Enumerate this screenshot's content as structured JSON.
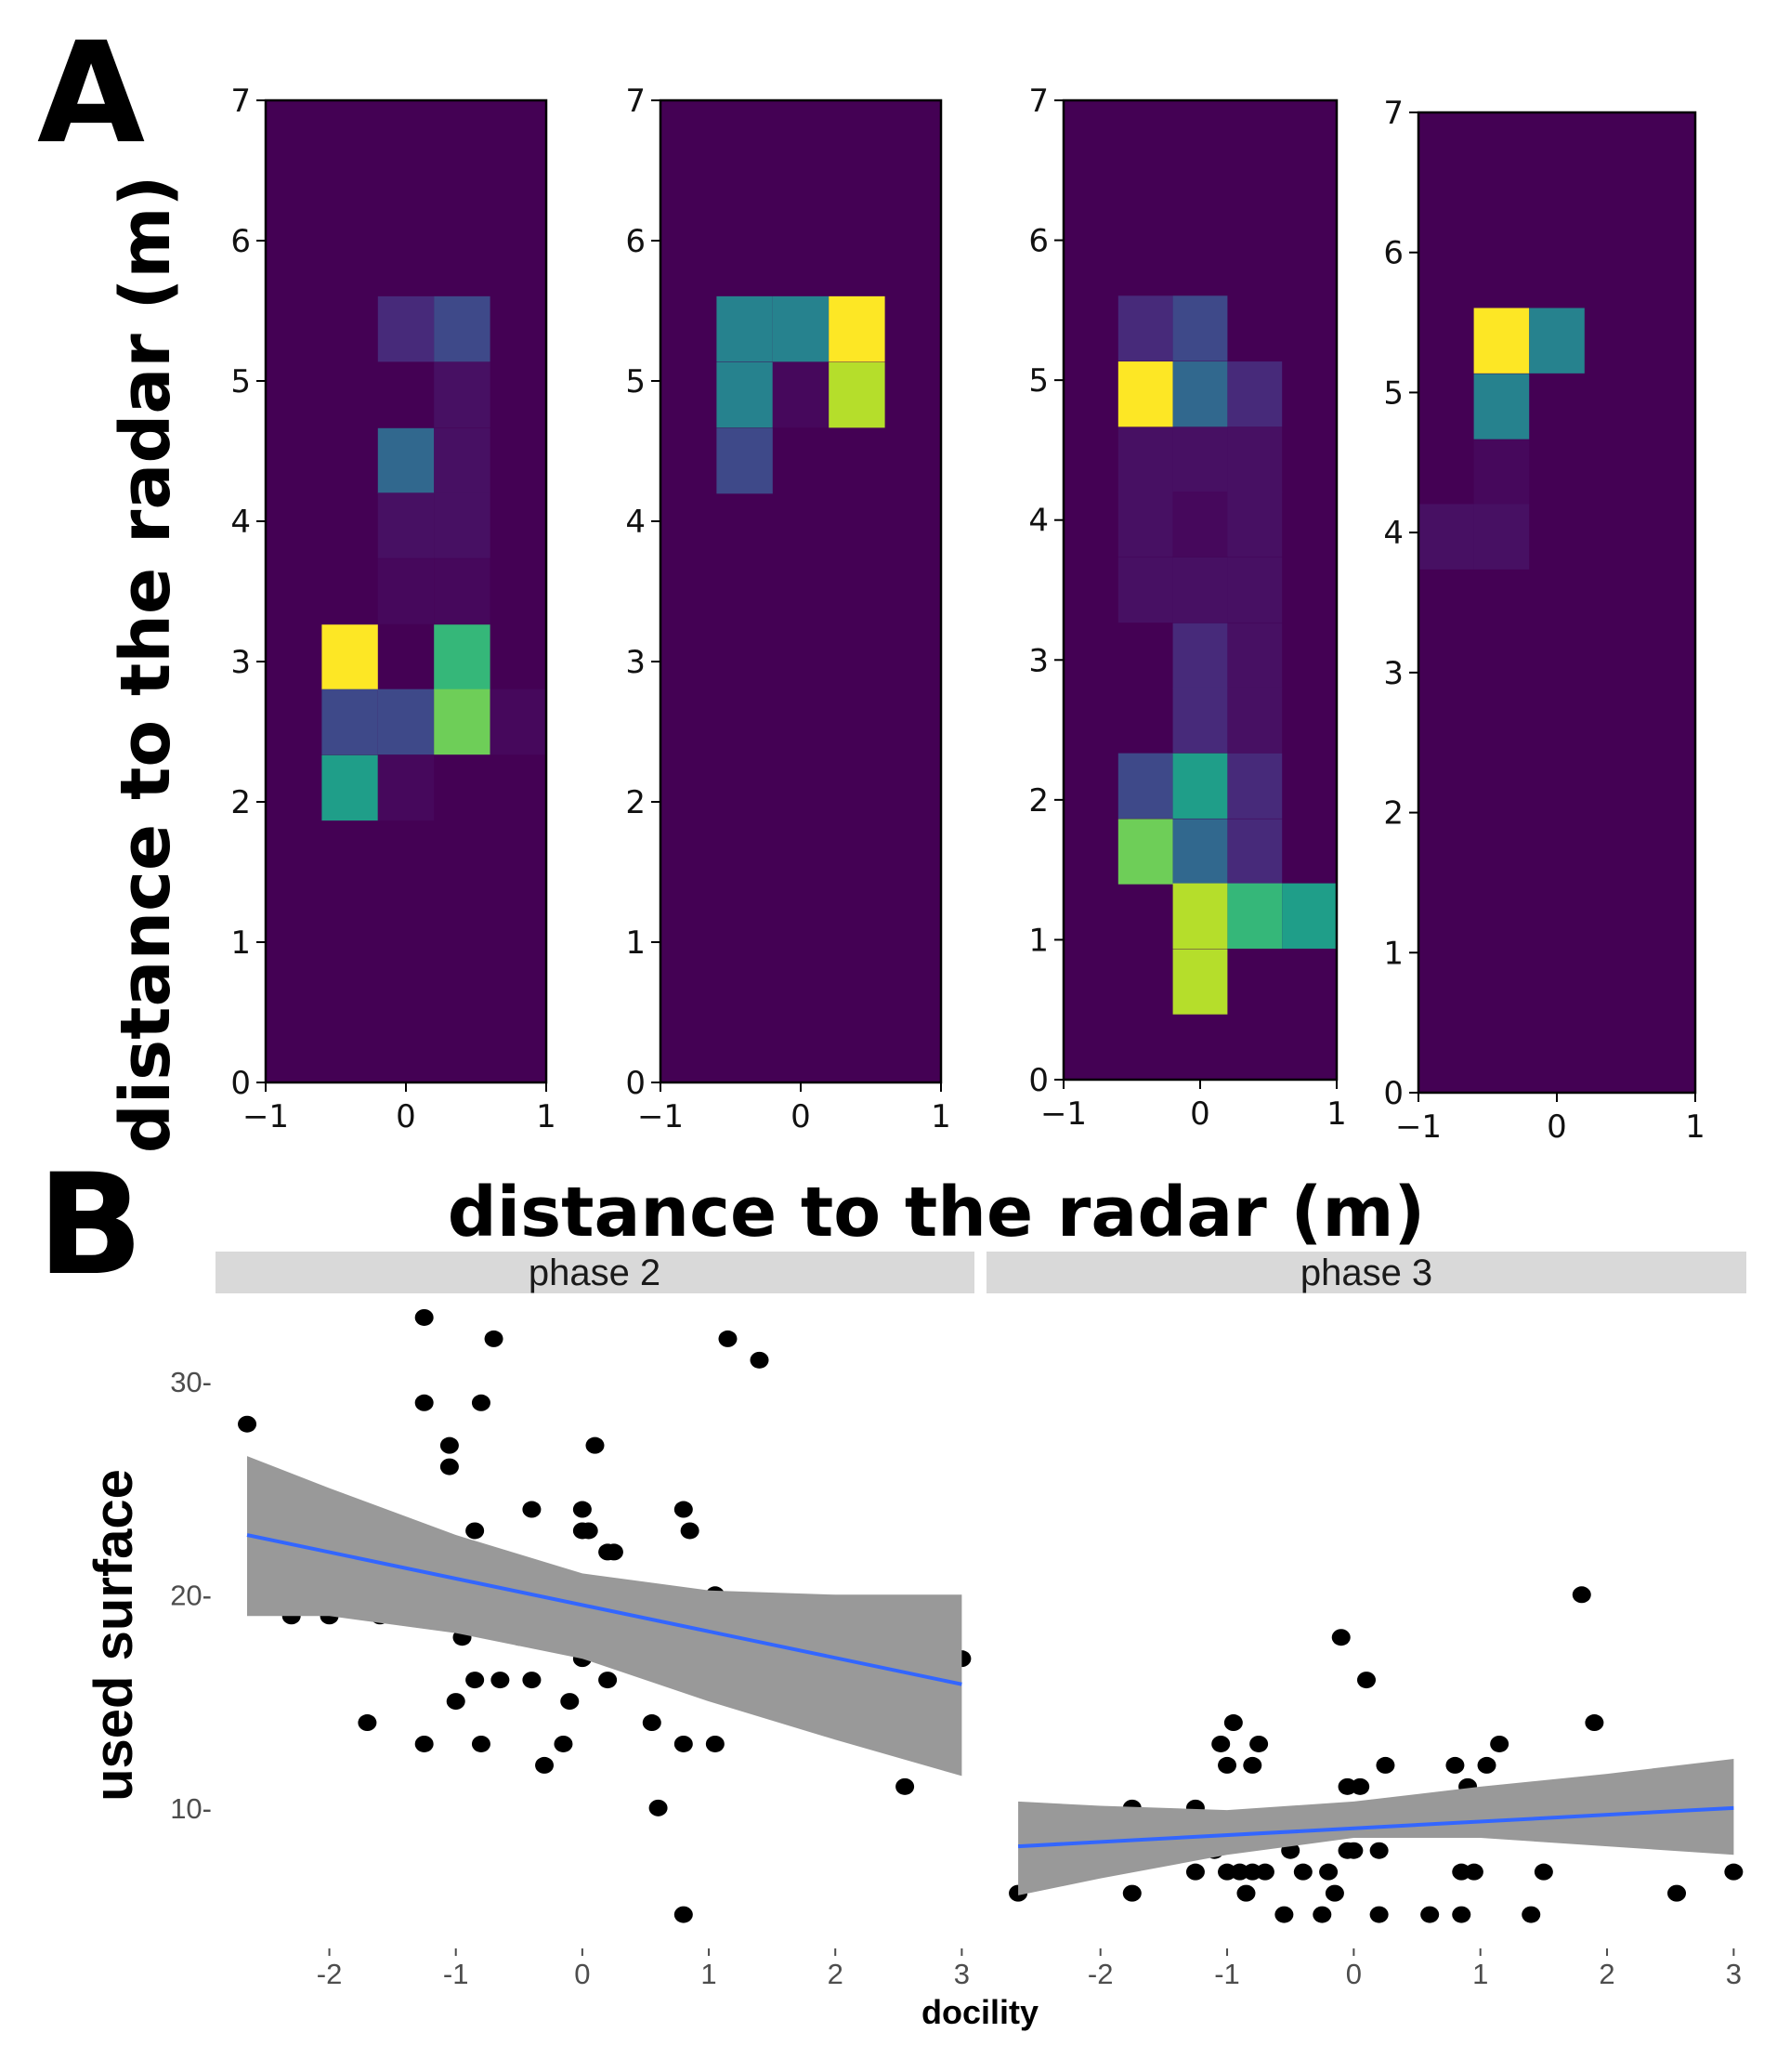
{
  "panel_labels": {
    "a": "A",
    "b": "B"
  },
  "colors": {
    "heatmap_bg": "#440154",
    "heatmap_levels": [
      "#440154",
      "#46085c",
      "#471063",
      "#472a7a",
      "#3e4989",
      "#31688e",
      "#26828e",
      "#1f9e89",
      "#35b779",
      "#6ece58",
      "#b5de2b",
      "#fde725"
    ],
    "point": "#000000",
    "fit_line": "#3366ff",
    "ribbon": "#999999",
    "strip": "#d9d9d9"
  },
  "chart_data": [
    {
      "type": "heatmap",
      "panel": "A",
      "xlabel": "distance to the radar (m)",
      "ylabel": "distance to the radar (m)",
      "xlim": [
        -1,
        1
      ],
      "ylim": [
        0,
        7
      ],
      "xticks": [
        "−1",
        "0",
        "1"
      ],
      "yticks": [
        "0",
        "1",
        "2",
        "3",
        "4",
        "5",
        "6",
        "7"
      ],
      "cell_size": [
        0.4,
        0.467
      ],
      "subplots": [
        {
          "name": "heatmap-1",
          "cells": [
            {
              "x": 0.0,
              "y": 5.37,
              "v": 3
            },
            {
              "x": 0.4,
              "y": 5.37,
              "v": 4
            },
            {
              "x": 0.4,
              "y": 4.9,
              "v": 2
            },
            {
              "x": 0.0,
              "y": 4.43,
              "v": 5
            },
            {
              "x": 0.4,
              "y": 4.43,
              "v": 2
            },
            {
              "x": 0.0,
              "y": 3.97,
              "v": 2
            },
            {
              "x": 0.4,
              "y": 3.97,
              "v": 2
            },
            {
              "x": 0.0,
              "y": 3.5,
              "v": 1
            },
            {
              "x": 0.4,
              "y": 3.5,
              "v": 1
            },
            {
              "x": -0.4,
              "y": 3.03,
              "v": 11
            },
            {
              "x": 0.4,
              "y": 3.03,
              "v": 8
            },
            {
              "x": -0.4,
              "y": 2.57,
              "v": 4
            },
            {
              "x": 0.0,
              "y": 2.57,
              "v": 4
            },
            {
              "x": 0.4,
              "y": 2.57,
              "v": 9
            },
            {
              "x": 0.8,
              "y": 2.57,
              "v": 1
            },
            {
              "x": -0.4,
              "y": 2.1,
              "v": 7
            },
            {
              "x": 0.0,
              "y": 2.1,
              "v": 1
            }
          ]
        },
        {
          "name": "heatmap-2",
          "cells": [
            {
              "x": -0.4,
              "y": 5.37,
              "v": 6
            },
            {
              "x": 0.0,
              "y": 5.37,
              "v": 6
            },
            {
              "x": 0.4,
              "y": 5.37,
              "v": 11
            },
            {
              "x": -0.4,
              "y": 4.9,
              "v": 6
            },
            {
              "x": 0.0,
              "y": 4.9,
              "v": 1
            },
            {
              "x": 0.4,
              "y": 4.9,
              "v": 10
            },
            {
              "x": -0.4,
              "y": 4.43,
              "v": 4
            }
          ]
        },
        {
          "name": "heatmap-3",
          "cells": [
            {
              "x": -0.4,
              "y": 5.37,
              "v": 3
            },
            {
              "x": 0.0,
              "y": 5.37,
              "v": 4
            },
            {
              "x": -0.4,
              "y": 4.9,
              "v": 11
            },
            {
              "x": 0.0,
              "y": 4.9,
              "v": 5
            },
            {
              "x": 0.4,
              "y": 4.9,
              "v": 3
            },
            {
              "x": -0.4,
              "y": 4.43,
              "v": 2
            },
            {
              "x": 0.0,
              "y": 4.43,
              "v": 2
            },
            {
              "x": 0.4,
              "y": 4.43,
              "v": 2
            },
            {
              "x": -0.4,
              "y": 3.97,
              "v": 2
            },
            {
              "x": 0.0,
              "y": 3.97,
              "v": 1
            },
            {
              "x": 0.4,
              "y": 3.97,
              "v": 2
            },
            {
              "x": -0.4,
              "y": 3.5,
              "v": 2
            },
            {
              "x": 0.0,
              "y": 3.5,
              "v": 2
            },
            {
              "x": 0.4,
              "y": 3.5,
              "v": 2
            },
            {
              "x": 0.0,
              "y": 3.03,
              "v": 3
            },
            {
              "x": 0.4,
              "y": 3.03,
              "v": 2
            },
            {
              "x": 0.0,
              "y": 2.57,
              "v": 3
            },
            {
              "x": 0.4,
              "y": 2.57,
              "v": 2
            },
            {
              "x": -0.4,
              "y": 2.1,
              "v": 4
            },
            {
              "x": 0.0,
              "y": 2.1,
              "v": 7
            },
            {
              "x": 0.4,
              "y": 2.1,
              "v": 3
            },
            {
              "x": -0.4,
              "y": 1.63,
              "v": 9
            },
            {
              "x": 0.0,
              "y": 1.63,
              "v": 5
            },
            {
              "x": 0.4,
              "y": 1.63,
              "v": 3
            },
            {
              "x": 0.0,
              "y": 1.17,
              "v": 10
            },
            {
              "x": 0.4,
              "y": 1.17,
              "v": 8
            },
            {
              "x": 0.8,
              "y": 1.17,
              "v": 7
            },
            {
              "x": 0.0,
              "y": 0.7,
              "v": 10
            }
          ]
        },
        {
          "name": "heatmap-4",
          "cells": [
            {
              "x": -0.4,
              "y": 5.37,
              "v": 11
            },
            {
              "x": 0.0,
              "y": 5.37,
              "v": 6
            },
            {
              "x": -0.4,
              "y": 4.9,
              "v": 6
            },
            {
              "x": -0.4,
              "y": 4.43,
              "v": 1
            },
            {
              "x": -0.8,
              "y": 3.97,
              "v": 2
            },
            {
              "x": -0.4,
              "y": 3.97,
              "v": 2
            }
          ]
        }
      ]
    },
    {
      "type": "scatter",
      "panel": "B",
      "xlabel": "docility",
      "ylabel": "used surface",
      "xlim": [
        -2.9,
        3.1
      ],
      "ylim": [
        3.5,
        34
      ],
      "xticks": [
        "-2",
        "-1",
        "0",
        "1",
        "2",
        "3"
      ],
      "yticks": [
        "10-",
        "20-",
        "30-"
      ],
      "ytick_values": [
        10,
        20,
        30
      ],
      "facets": [
        {
          "name": "phase 2",
          "points": [
            [
              -2.65,
              28
            ],
            [
              -2.3,
              19
            ],
            [
              -2.0,
              19
            ],
            [
              -1.7,
              14
            ],
            [
              -1.6,
              19
            ],
            [
              -1.25,
              33
            ],
            [
              -1.25,
              29
            ],
            [
              -1.25,
              13
            ],
            [
              -1.05,
              27
            ],
            [
              -1.05,
              26
            ],
            [
              -1.0,
              15
            ],
            [
              -0.95,
              18
            ],
            [
              -0.85,
              23
            ],
            [
              -0.85,
              16
            ],
            [
              -0.8,
              29
            ],
            [
              -0.8,
              13
            ],
            [
              -0.7,
              32
            ],
            [
              -0.65,
              16
            ],
            [
              -0.5,
              18
            ],
            [
              -0.4,
              24
            ],
            [
              -0.4,
              16
            ],
            [
              -0.3,
              12
            ],
            [
              -0.15,
              13
            ],
            [
              -0.1,
              15
            ],
            [
              -0.05,
              18
            ],
            [
              0.0,
              24
            ],
            [
              0.0,
              23
            ],
            [
              0.0,
              17
            ],
            [
              0.05,
              23
            ],
            [
              0.1,
              27
            ],
            [
              0.2,
              22
            ],
            [
              0.25,
              22
            ],
            [
              0.2,
              16
            ],
            [
              0.25,
              18
            ],
            [
              0.55,
              14
            ],
            [
              0.6,
              10
            ],
            [
              0.8,
              24
            ],
            [
              0.85,
              23
            ],
            [
              0.8,
              17
            ],
            [
              0.8,
              13
            ],
            [
              0.8,
              5
            ],
            [
              1.05,
              20
            ],
            [
              1.05,
              13
            ],
            [
              1.15,
              32
            ],
            [
              1.4,
              31
            ],
            [
              1.55,
              15
            ],
            [
              2.55,
              11
            ],
            [
              3.0,
              17
            ]
          ],
          "fit": {
            "x": [
              -2.65,
              3.0
            ],
            "y": [
              22.8,
              15.8
            ]
          },
          "ribbon": {
            "x": [
              -2.65,
              -2.0,
              -1.0,
              0.0,
              1.0,
              2.0,
              3.0
            ],
            "lower": [
              19.0,
              19.0,
              18.2,
              17.0,
              15.0,
              13.2,
              11.5
            ],
            "upper": [
              26.5,
              25.0,
              22.8,
              21.0,
              20.2,
              20.0,
              20.0
            ]
          }
        },
        {
          "name": "phase 3",
          "points": [
            [
              -2.65,
              6
            ],
            [
              -1.75,
              6
            ],
            [
              -1.75,
              10
            ],
            [
              -1.25,
              10
            ],
            [
              -1.25,
              7
            ],
            [
              -1.1,
              8
            ],
            [
              -1.05,
              13
            ],
            [
              -1.0,
              12
            ],
            [
              -1.0,
              7
            ],
            [
              -0.95,
              14
            ],
            [
              -0.95,
              9
            ],
            [
              -0.9,
              7
            ],
            [
              -0.85,
              6
            ],
            [
              -0.8,
              12
            ],
            [
              -0.8,
              7
            ],
            [
              -0.75,
              13
            ],
            [
              -0.7,
              7
            ],
            [
              -0.55,
              5
            ],
            [
              -0.5,
              8
            ],
            [
              -0.4,
              7
            ],
            [
              -0.3,
              9
            ],
            [
              -0.25,
              5
            ],
            [
              -0.2,
              7
            ],
            [
              -0.15,
              6
            ],
            [
              -0.1,
              18
            ],
            [
              -0.05,
              11
            ],
            [
              -0.05,
              8
            ],
            [
              0.0,
              8
            ],
            [
              0.05,
              11
            ],
            [
              0.1,
              16
            ],
            [
              0.15,
              10
            ],
            [
              0.2,
              8
            ],
            [
              0.2,
              5
            ],
            [
              0.25,
              12
            ],
            [
              0.55,
              10
            ],
            [
              0.6,
              5
            ],
            [
              0.8,
              12
            ],
            [
              0.85,
              9
            ],
            [
              0.85,
              7
            ],
            [
              0.85,
              5
            ],
            [
              0.9,
              11
            ],
            [
              0.95,
              7
            ],
            [
              1.05,
              12
            ],
            [
              1.15,
              13
            ],
            [
              1.4,
              5
            ],
            [
              1.5,
              7
            ],
            [
              1.8,
              20
            ],
            [
              1.9,
              14
            ],
            [
              2.55,
              6
            ],
            [
              3.0,
              7
            ]
          ],
          "fit": {
            "x": [
              -2.65,
              3.0
            ],
            "y": [
              8.2,
              10.0
            ]
          },
          "ribbon": {
            "x": [
              -2.65,
              -2.0,
              -1.0,
              0.0,
              1.0,
              2.0,
              3.0
            ],
            "lower": [
              5.9,
              6.7,
              7.8,
              8.6,
              8.6,
              8.2,
              7.8
            ],
            "upper": [
              10.3,
              10.1,
              9.9,
              10.3,
              11.0,
              11.6,
              12.3
            ]
          }
        }
      ]
    }
  ]
}
